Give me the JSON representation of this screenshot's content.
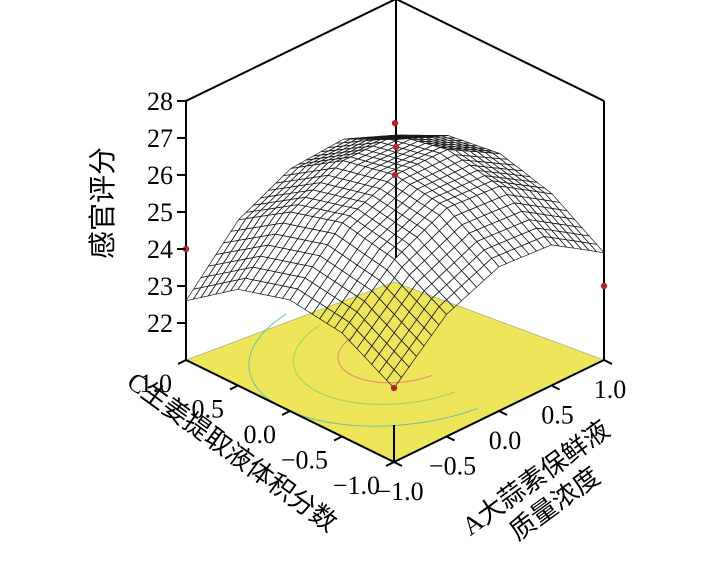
{
  "chart_data": {
    "type": "surface3d",
    "zlabel": "感官评分",
    "xlabel": "A大蒜素保鲜液质量浓度",
    "ylabel": "C生姜提取液体积分数",
    "xlim": [
      -1.0,
      1.0
    ],
    "ylim": [
      -1.0,
      1.0
    ],
    "zlim": [
      22,
      28
    ],
    "x_ticks": [
      "−1.0",
      "−0.5",
      "0.0",
      "0.5",
      "1.0"
    ],
    "y_ticks": [
      "−1.0",
      "−0.5",
      "0.0",
      "0.5",
      "1.0"
    ],
    "z_ticks": [
      "22",
      "23",
      "24",
      "25",
      "26",
      "27",
      "28"
    ],
    "surface_grid": {
      "x": [
        -1.0,
        -0.5,
        0.0,
        0.5,
        1.0
      ],
      "y": [
        -1.0,
        -0.5,
        0.0,
        0.5,
        1.0
      ],
      "z": [
        [
          23.0,
          24.3,
          24.9,
          24.8,
          23.9
        ],
        [
          23.8,
          25.1,
          25.8,
          25.7,
          24.8
        ],
        [
          24.0,
          25.4,
          26.0,
          26.0,
          25.2
        ],
        [
          23.6,
          25.0,
          25.7,
          25.7,
          25.0
        ],
        [
          22.6,
          24.1,
          24.8,
          24.9,
          24.2
        ]
      ]
    },
    "design_points": [
      {
        "x": -1.0,
        "y": -1.0,
        "z": 23.0
      },
      {
        "x": -1.0,
        "y": 1.0,
        "z": 24.0
      },
      {
        "x": 1.0,
        "y": -1.0,
        "z": 23.0
      },
      {
        "x": 1.0,
        "y": 1.0,
        "z": 24.0
      },
      {
        "x": 0.0,
        "y": 0.0,
        "z": 26.0
      }
    ],
    "colormap": [
      "#2aa9c2",
      "#6fbf52",
      "#c9d637",
      "#f0c879",
      "#e89a5e"
    ],
    "floor_color": "#ede65a"
  }
}
